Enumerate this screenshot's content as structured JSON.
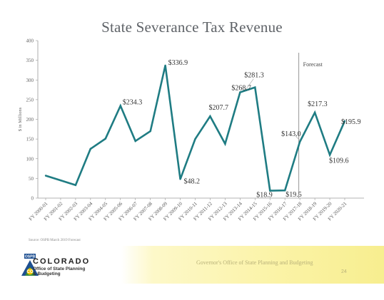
{
  "slide": {
    "title": "State Severance Tax Revenue",
    "source": "Source: OSPB March 2019 Forecast",
    "footer_text": "Governor's Office of State Planning and Budgeting",
    "page_number": "24"
  },
  "logo": {
    "badge_text": "OSPB",
    "monogram": "CO",
    "word": "COLORADO",
    "sub_line1": "Office of State Planning",
    "sub_line2": "& Budgeting",
    "colors": {
      "blue": "#1d4f91",
      "green": "#3a8d3f",
      "gold": "#f2c500"
    }
  },
  "chart_data": {
    "type": "line",
    "title": "State Severance Tax Revenue",
    "ylabel": "$ in Millions",
    "xlabel": "",
    "ylim": [
      0,
      400
    ],
    "yticks": [
      0,
      50,
      100,
      150,
      200,
      250,
      300,
      350,
      400
    ],
    "categories": [
      "FY 2000-01",
      "FY 2001-02",
      "FY 2002-03",
      "FY 2003-04",
      "FY 2004-05",
      "FY 2005-06",
      "FY 2006-07",
      "FY 2007-08",
      "FY 2008-09",
      "FY 2009-10",
      "FY 2010-11",
      "FY 2011-12",
      "FY 2012-13",
      "FY 2013-14",
      "FY 2014-15",
      "FY 2015-16",
      "FY 2016-17",
      "FY 2017-18",
      "FY 2018-19",
      "FY 2019-20",
      "FY 2020-21"
    ],
    "series": [
      {
        "values": [
          57,
          45,
          33,
          125,
          151,
          234.3,
          145,
          170,
          336.9,
          48.2,
          150,
          207.7,
          138,
          268.7,
          281.3,
          18.9,
          19.5,
          143.0,
          217.3,
          109.6,
          195.9
        ]
      }
    ],
    "data_labels": [
      {
        "index": 5,
        "text": "$234.3"
      },
      {
        "index": 8,
        "text": "$336.9"
      },
      {
        "index": 9,
        "text": "$48.2"
      },
      {
        "index": 11,
        "text": "$207.7"
      },
      {
        "index": 13,
        "text": "$268.7"
      },
      {
        "index": 14,
        "text": "$281.3"
      },
      {
        "index": 15,
        "text": "$18.9"
      },
      {
        "index": 16,
        "text": "$19.5"
      },
      {
        "index": 17,
        "text": "$143.0"
      },
      {
        "index": 18,
        "text": "$217.3"
      },
      {
        "index": 19,
        "text": "$109.6"
      },
      {
        "index": 20,
        "text": "$195.9"
      }
    ],
    "forecast_label": "Forecast",
    "forecast_start_category": "FY 2017-18",
    "line_color": "#1f7c83",
    "grid": false,
    "legend": "none"
  }
}
